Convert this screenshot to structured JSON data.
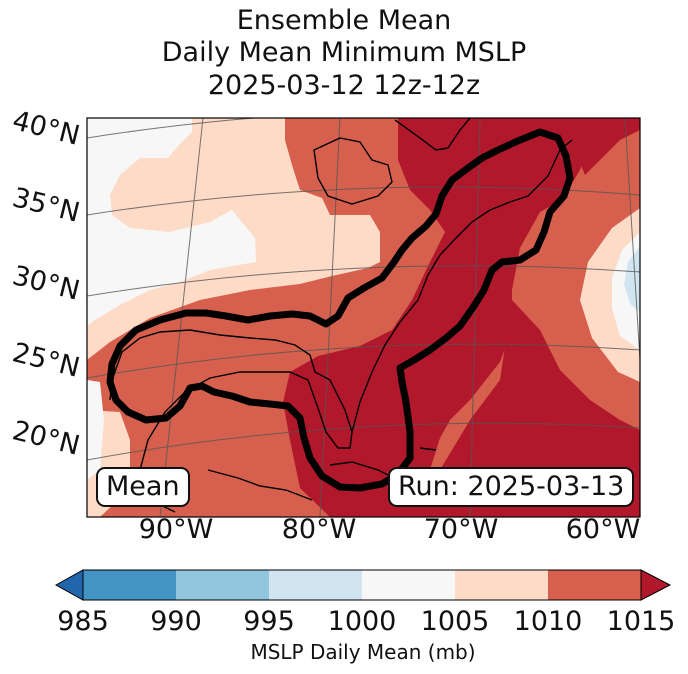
{
  "title": {
    "line1": "Ensemble Mean",
    "line2": "Daily Mean Minimum MSLP",
    "line3": "2025-03-12 12z-12z"
  },
  "map": {
    "lat_labels": [
      "40°N",
      "35°N",
      "30°N",
      "25°N",
      "20°N"
    ],
    "lon_labels": [
      "90°W",
      "80°W",
      "70°W",
      "60°W"
    ],
    "mean_badge": "Mean",
    "run_badge": "Run: 2025-03-13"
  },
  "colorbar": {
    "ticks": [
      "985",
      "990",
      "995",
      "1000",
      "1005",
      "1010",
      "1015"
    ],
    "label": "MSLP Daily Mean (mb)",
    "colors": {
      "below_985": "#2166ac",
      "985_990": "#4393c3",
      "990_995": "#92c5de",
      "995_1000": "#d1e5f0",
      "1000_1005": "#f7f7f7",
      "1005_1010": "#fddbc7",
      "1010_1015": "#d6604d",
      "above_1015": "#b2182b"
    }
  }
}
